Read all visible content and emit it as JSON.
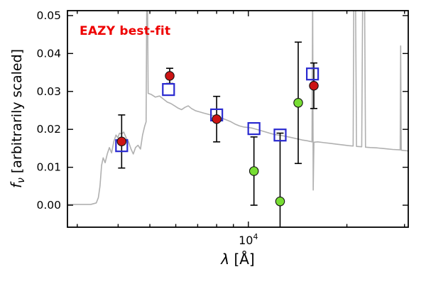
{
  "figure": {
    "annotation": "EAZY best-fit",
    "annotation_color": "#ee0000",
    "background": "#ffffff",
    "frame_color": "#000000"
  },
  "chart_data": {
    "type": "line",
    "title": "",
    "xlabel": "λ [Å]",
    "ylabel": "f_ν [arbitrarily scaled]",
    "xlabel_parts": {
      "symbol": "λ",
      "rest": " [Å]"
    },
    "ylabel_parts": {
      "symbol": "f",
      "sub": "ν",
      "rest": " [arbitrarily scaled]"
    },
    "xscale": "log",
    "xlim": [
      2800,
      30800
    ],
    "ylim": [
      -0.0058,
      0.0513
    ],
    "yticks": [
      0.0,
      0.01,
      0.02,
      0.03,
      0.04,
      0.05
    ],
    "ytick_labels": [
      "0.00",
      "0.01",
      "0.02",
      "0.03",
      "0.04",
      "0.05"
    ],
    "xtick_major": {
      "value": 10000,
      "label_base": "10",
      "label_exp": "4"
    },
    "xticks_minor": [
      3000,
      4000,
      5000,
      6000,
      7000,
      8000,
      9000,
      20000,
      30000
    ],
    "grid": false,
    "legend": "none",
    "series": [
      {
        "name": "model-spectrum",
        "type": "line",
        "color": "#b0b0b0",
        "linewidth": 1.6,
        "points": [
          [
            2800,
            0.0002
          ],
          [
            3300,
            0.0002
          ],
          [
            3430,
            0.0006
          ],
          [
            3480,
            0.002
          ],
          [
            3520,
            0.005
          ],
          [
            3560,
            0.0105
          ],
          [
            3600,
            0.0125
          ],
          [
            3650,
            0.0112
          ],
          [
            3705,
            0.0135
          ],
          [
            3760,
            0.0152
          ],
          [
            3820,
            0.0138
          ],
          [
            3880,
            0.0168
          ],
          [
            3940,
            0.0185
          ],
          [
            3990,
            0.0178
          ],
          [
            4040,
            0.019
          ],
          [
            4100,
            0.0188
          ],
          [
            4160,
            0.0193
          ],
          [
            4230,
            0.0178
          ],
          [
            4300,
            0.0168
          ],
          [
            4380,
            0.0148
          ],
          [
            4450,
            0.0135
          ],
          [
            4520,
            0.0152
          ],
          [
            4600,
            0.0158
          ],
          [
            4680,
            0.0148
          ],
          [
            4750,
            0.0185
          ],
          [
            4820,
            0.0208
          ],
          [
            4870,
            0.022
          ],
          [
            4895,
            0.058
          ],
          [
            4915,
            0.058
          ],
          [
            4940,
            0.0295
          ],
          [
            5050,
            0.0292
          ],
          [
            5200,
            0.0285
          ],
          [
            5350,
            0.0288
          ],
          [
            5500,
            0.028
          ],
          [
            5650,
            0.0272
          ],
          [
            5800,
            0.0268
          ],
          [
            5950,
            0.0262
          ],
          [
            6100,
            0.0256
          ],
          [
            6250,
            0.0252
          ],
          [
            6400,
            0.0258
          ],
          [
            6550,
            0.0262
          ],
          [
            6700,
            0.0255
          ],
          [
            6900,
            0.0249
          ],
          [
            7100,
            0.0246
          ],
          [
            7300,
            0.0243
          ],
          [
            7600,
            0.0239
          ],
          [
            7900,
            0.0235
          ],
          [
            8200,
            0.0231
          ],
          [
            8500,
            0.0226
          ],
          [
            8800,
            0.0221
          ],
          [
            9100,
            0.0214
          ],
          [
            9400,
            0.0209
          ],
          [
            9700,
            0.0206
          ],
          [
            10000,
            0.0205
          ],
          [
            10300,
            0.0203
          ],
          [
            10700,
            0.0199
          ],
          [
            11100,
            0.0195
          ],
          [
            11600,
            0.019
          ],
          [
            12100,
            0.0186
          ],
          [
            12600,
            0.0184
          ],
          [
            13100,
            0.0181
          ],
          [
            13600,
            0.0178
          ],
          [
            14100,
            0.0175
          ],
          [
            14600,
            0.0172
          ],
          [
            15100,
            0.017
          ],
          [
            15500,
            0.0168
          ],
          [
            15650,
            0.0167
          ],
          [
            15720,
            0.055
          ],
          [
            15780,
            0.004
          ],
          [
            15860,
            0.0166
          ],
          [
            16300,
            0.0167
          ],
          [
            17000,
            0.0165
          ],
          [
            17800,
            0.0163
          ],
          [
            18600,
            0.0161
          ],
          [
            19400,
            0.0159
          ],
          [
            20300,
            0.0157
          ],
          [
            20900,
            0.0156
          ],
          [
            21000,
            0.056
          ],
          [
            21250,
            0.056
          ],
          [
            21400,
            0.0155
          ],
          [
            22200,
            0.0154
          ],
          [
            22350,
            0.055
          ],
          [
            22650,
            0.055
          ],
          [
            22800,
            0.0153
          ],
          [
            23600,
            0.0152
          ],
          [
            24800,
            0.0151
          ],
          [
            26200,
            0.0149
          ],
          [
            27600,
            0.0147
          ],
          [
            29100,
            0.0146
          ],
          [
            29200,
            0.042
          ],
          [
            29320,
            0.0145
          ],
          [
            30100,
            0.0144
          ],
          [
            30800,
            0.0143
          ]
        ]
      },
      {
        "name": "model-photometry",
        "type": "scatter",
        "marker": "square-open",
        "color": "#2a2ad0",
        "size": 16,
        "points": [
          [
            4100,
            0.0157
          ],
          [
            5700,
            0.0305
          ],
          [
            8000,
            0.0238
          ],
          [
            10400,
            0.0202
          ],
          [
            12500,
            0.0185
          ],
          [
            15700,
            0.0346
          ]
        ]
      },
      {
        "name": "observed-photometry-red",
        "type": "scatter",
        "marker": "circle",
        "color": "#cc1414",
        "size": 6.2,
        "points": [
          [
            4100,
            0.0168
          ],
          [
            5750,
            0.0341
          ],
          [
            8000,
            0.0227
          ],
          [
            15850,
            0.0315
          ]
        ],
        "yerr": [
          0.007,
          0.002,
          0.006,
          0.006
        ]
      },
      {
        "name": "observed-photometry-green",
        "type": "scatter",
        "marker": "circle",
        "color": "#77dd33",
        "size": 6.2,
        "points": [
          [
            10400,
            0.009
          ],
          [
            12500,
            0.001
          ],
          [
            14200,
            0.027
          ]
        ],
        "yerr": [
          0.009,
          0.018,
          0.016
        ]
      }
    ]
  }
}
